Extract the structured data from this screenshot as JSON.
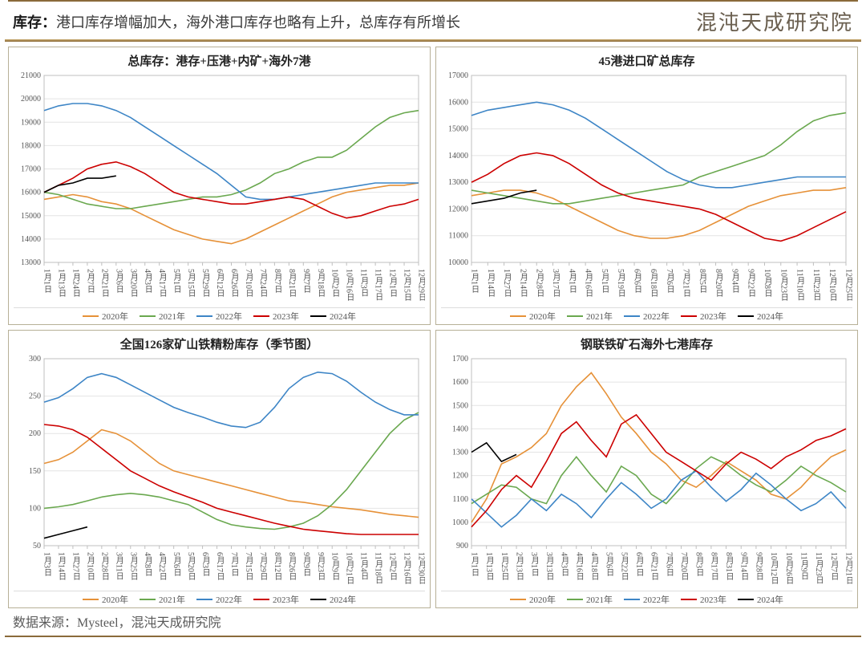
{
  "header": {
    "label_bold": "库存：",
    "label_rest": "港口库存增幅加大，海外港口库存也略有上升，总库存有所增长",
    "brand": "混沌天成研究院"
  },
  "footer": {
    "text": "数据来源：Mysteel，混沌天成研究院"
  },
  "colors": {
    "s2020": "#e69138",
    "s2021": "#6aa84f",
    "s2022": "#3d85c6",
    "s2023": "#cc0000",
    "s2024": "#000000",
    "grid": "#e4e4e4",
    "axis": "#bfbfbf",
    "bg": "#ffffff",
    "border": "#b7b097"
  },
  "legend_labels": [
    "2020年",
    "2021年",
    "2022年",
    "2023年",
    "2024年"
  ],
  "legend_keys": [
    "s2020",
    "s2021",
    "s2022",
    "s2023",
    "s2024"
  ],
  "charts": [
    {
      "id": "c1",
      "title": "总库存：港存+压港+内矿+海外7港",
      "ylim": [
        13000,
        21000
      ],
      "ytick_step": 1000,
      "xlabels": [
        "1月1日",
        "1月13日",
        "1月24日",
        "2月7日",
        "2月21日",
        "3月6日",
        "3月20日",
        "4月3日",
        "4月17日",
        "5月1日",
        "5月15日",
        "5月29日",
        "6月12日",
        "6月26日",
        "7月10日",
        "7月24日",
        "8月7日",
        "8月21日",
        "9月7日",
        "9月18日",
        "10月2日",
        "10月16日",
        "11月3日",
        "11月17日",
        "12月1日",
        "12月15日",
        "12月29日"
      ],
      "series": {
        "s2020": [
          15700,
          15800,
          15900,
          15800,
          15600,
          15500,
          15300,
          15000,
          14700,
          14400,
          14200,
          14000,
          13900,
          13800,
          14000,
          14300,
          14600,
          14900,
          15200,
          15500,
          15800,
          16000,
          16100,
          16200,
          16300,
          16300,
          16400
        ],
        "s2021": [
          16000,
          15900,
          15700,
          15500,
          15400,
          15300,
          15300,
          15400,
          15500,
          15600,
          15700,
          15800,
          15800,
          15900,
          16100,
          16400,
          16800,
          17000,
          17300,
          17500,
          17500,
          17800,
          18300,
          18800,
          19200,
          19400,
          19500
        ],
        "s2022": [
          19500,
          19700,
          19800,
          19800,
          19700,
          19500,
          19200,
          18800,
          18400,
          18000,
          17600,
          17200,
          16800,
          16300,
          15800,
          15700,
          15700,
          15800,
          15900,
          16000,
          16100,
          16200,
          16300,
          16400,
          16400,
          16400,
          16400
        ],
        "s2023": [
          16000,
          16300,
          16600,
          17000,
          17200,
          17300,
          17100,
          16800,
          16400,
          16000,
          15800,
          15700,
          15600,
          15500,
          15500,
          15600,
          15700,
          15800,
          15700,
          15400,
          15100,
          14900,
          15000,
          15200,
          15400,
          15500,
          15700
        ],
        "s2024": [
          16000,
          16300,
          16400,
          16600,
          16600,
          16700
        ]
      }
    },
    {
      "id": "c2",
      "title": "45港进口矿总库存",
      "ylim": [
        10000,
        17000
      ],
      "ytick_step": 1000,
      "xlabels": [
        "1月1日",
        "1月14日",
        "1月27日",
        "2月14日",
        "2月28日",
        "3月17日",
        "4月1日",
        "4月16日",
        "5月1日",
        "5月19日",
        "6月6日",
        "6月18日",
        "7月6日",
        "7月21日",
        "8月5日",
        "8月20日",
        "9月4日",
        "9月22日",
        "10月8日",
        "10月23日",
        "11月10日",
        "11月23日",
        "12月10日",
        "12月25日"
      ],
      "series": {
        "s2020": [
          12500,
          12600,
          12700,
          12700,
          12600,
          12400,
          12100,
          11800,
          11500,
          11200,
          11000,
          10900,
          10900,
          11000,
          11200,
          11500,
          11800,
          12100,
          12300,
          12500,
          12600,
          12700,
          12700,
          12800
        ],
        "s2021": [
          12700,
          12600,
          12500,
          12400,
          12300,
          12200,
          12200,
          12300,
          12400,
          12500,
          12600,
          12700,
          12800,
          12900,
          13200,
          13400,
          13600,
          13800,
          14000,
          14400,
          14900,
          15300,
          15500,
          15600
        ],
        "s2022": [
          15500,
          15700,
          15800,
          15900,
          16000,
          15900,
          15700,
          15400,
          15000,
          14600,
          14200,
          13800,
          13400,
          13100,
          12900,
          12800,
          12800,
          12900,
          13000,
          13100,
          13200,
          13200,
          13200,
          13200
        ],
        "s2023": [
          13000,
          13300,
          13700,
          14000,
          14100,
          14000,
          13700,
          13300,
          12900,
          12600,
          12400,
          12300,
          12200,
          12100,
          12000,
          11800,
          11500,
          11200,
          10900,
          10800,
          11000,
          11300,
          11600,
          11900
        ],
        "s2024": [
          12200,
          12300,
          12400,
          12600,
          12700
        ]
      }
    },
    {
      "id": "c3",
      "title": "全国126家矿山铁精粉库存（季节图）",
      "ylim": [
        50,
        300
      ],
      "ytick_step": 50,
      "xlabels": [
        "1月3日",
        "1月14日",
        "1月27日",
        "2月10日",
        "2月28日",
        "3月11日",
        "3月25日",
        "4月8日",
        "4月22日",
        "5月6日",
        "5月20日",
        "6月3日",
        "6月17日",
        "7月1日",
        "7月15日",
        "7月29日",
        "8月12日",
        "8月26日",
        "9月9日",
        "9月23日",
        "10月9日",
        "10月21日",
        "11月4日",
        "11月18日",
        "12月2日",
        "12月16日",
        "12月30日"
      ],
      "series": {
        "s2020": [
          160,
          165,
          175,
          190,
          205,
          200,
          190,
          175,
          160,
          150,
          145,
          140,
          135,
          130,
          125,
          120,
          115,
          110,
          108,
          105,
          102,
          100,
          98,
          95,
          92,
          90,
          88
        ],
        "s2021": [
          100,
          102,
          105,
          110,
          115,
          118,
          120,
          118,
          115,
          110,
          105,
          95,
          85,
          78,
          75,
          73,
          72,
          75,
          80,
          90,
          105,
          125,
          150,
          175,
          200,
          218,
          228
        ],
        "s2022": [
          242,
          248,
          260,
          275,
          280,
          275,
          265,
          255,
          245,
          235,
          228,
          222,
          215,
          210,
          208,
          215,
          235,
          260,
          275,
          282,
          280,
          270,
          255,
          242,
          232,
          225,
          225
        ],
        "s2023": [
          212,
          210,
          205,
          195,
          180,
          165,
          150,
          140,
          130,
          122,
          115,
          108,
          100,
          95,
          90,
          85,
          80,
          76,
          72,
          70,
          68,
          66,
          65,
          65,
          65,
          65,
          65
        ],
        "s2024": [
          60,
          65,
          70,
          75
        ]
      }
    },
    {
      "id": "c4",
      "title": "钢联铁矿石海外七港库存",
      "ylim": [
        900,
        1700
      ],
      "ytick_step": 100,
      "xlabels": [
        "1月1日",
        "1月13日",
        "1月25日",
        "2月13日",
        "3月1日",
        "3月13日",
        "4月3日",
        "4月16日",
        "4月18日",
        "5月6日",
        "5月22日",
        "6月1日",
        "6月21日",
        "7月6日",
        "7月20日",
        "8月3日",
        "8月17日",
        "8月31日",
        "9月14日",
        "9月28日",
        "10月12日",
        "10月26日",
        "11月9日",
        "11月23日",
        "12月7日",
        "12月21日"
      ],
      "series": {
        "s2020": [
          1000,
          1100,
          1250,
          1280,
          1320,
          1380,
          1500,
          1580,
          1640,
          1550,
          1450,
          1380,
          1300,
          1250,
          1180,
          1150,
          1200,
          1260,
          1220,
          1180,
          1120,
          1100,
          1150,
          1220,
          1280,
          1310
        ],
        "s2021": [
          1080,
          1120,
          1160,
          1150,
          1100,
          1080,
          1200,
          1280,
          1200,
          1130,
          1240,
          1200,
          1120,
          1080,
          1150,
          1230,
          1280,
          1250,
          1200,
          1160,
          1130,
          1180,
          1240,
          1200,
          1170,
          1130
        ],
        "s2022": [
          1100,
          1040,
          980,
          1030,
          1100,
          1050,
          1120,
          1080,
          1020,
          1100,
          1170,
          1120,
          1060,
          1100,
          1180,
          1220,
          1150,
          1090,
          1140,
          1210,
          1160,
          1100,
          1050,
          1080,
          1130,
          1060
        ],
        "s2023": [
          980,
          1050,
          1140,
          1200,
          1150,
          1260,
          1380,
          1430,
          1350,
          1280,
          1420,
          1460,
          1380,
          1300,
          1260,
          1220,
          1180,
          1250,
          1300,
          1270,
          1230,
          1280,
          1310,
          1350,
          1370,
          1400
        ],
        "s2024": [
          1300,
          1340,
          1260,
          1290
        ]
      }
    }
  ]
}
